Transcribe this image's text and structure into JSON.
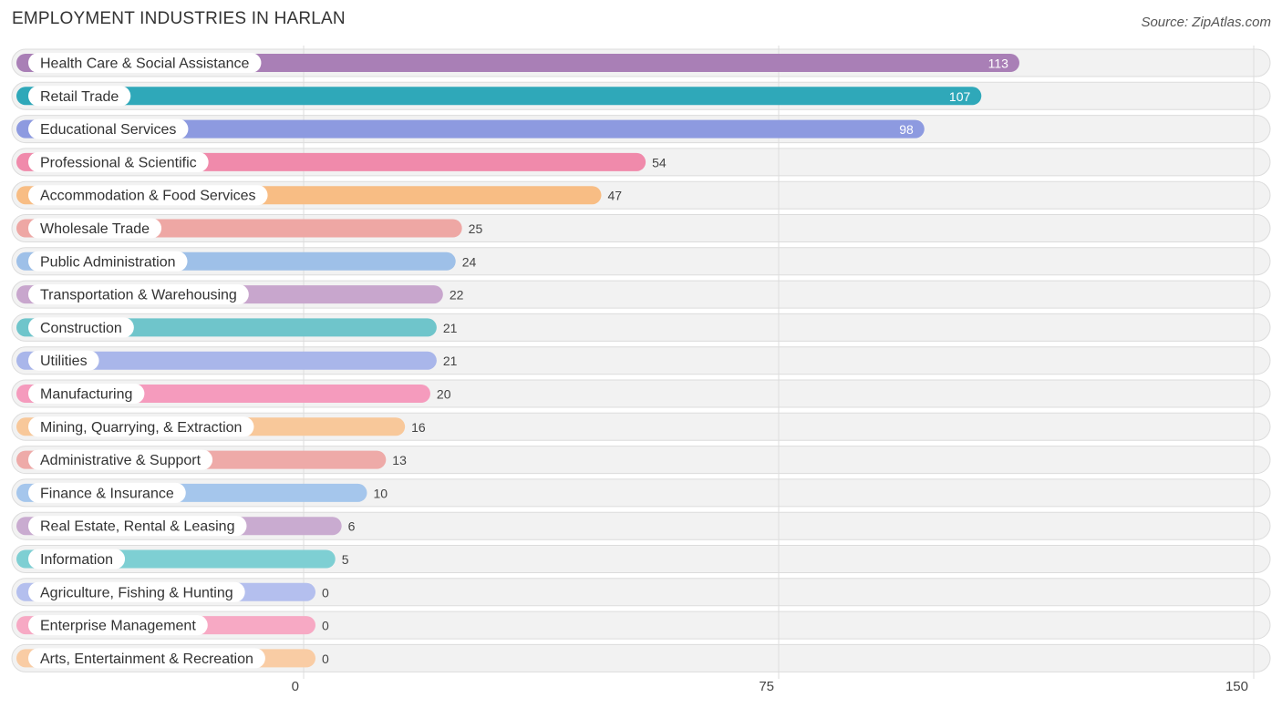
{
  "header": {
    "title": "EMPLOYMENT INDUSTRIES IN HARLAN",
    "source": "Source: ZipAtlas.com"
  },
  "chart_data": {
    "type": "bar",
    "orientation": "horizontal",
    "title": "EMPLOYMENT INDUSTRIES IN HARLAN",
    "xlabel": "",
    "ylabel": "",
    "xlim": [
      0,
      150
    ],
    "xticks": [
      0,
      75,
      150
    ],
    "grid": true,
    "categories": [
      "Health Care & Social Assistance",
      "Retail Trade",
      "Educational Services",
      "Professional & Scientific",
      "Accommodation & Food Services",
      "Wholesale Trade",
      "Public Administration",
      "Transportation & Warehousing",
      "Construction",
      "Utilities",
      "Manufacturing",
      "Mining, Quarrying, & Extraction",
      "Administrative & Support",
      "Finance & Insurance",
      "Real Estate, Rental & Leasing",
      "Information",
      "Agriculture, Fishing & Hunting",
      "Enterprise Management",
      "Arts, Entertainment & Recreation"
    ],
    "values": [
      113,
      107,
      98,
      54,
      47,
      25,
      24,
      22,
      21,
      21,
      20,
      16,
      13,
      10,
      6,
      5,
      0,
      0,
      0
    ],
    "colors": [
      "#a97fb6",
      "#2fa8b9",
      "#8d9ae0",
      "#f08aab",
      "#f8bd84",
      "#eea7a4",
      "#9ec0e8",
      "#c8a6cd",
      "#6fc5cb",
      "#a9b6ea",
      "#f59bbd",
      "#f8c89a",
      "#eeaaa8",
      "#a5c6ec",
      "#c9abd0",
      "#7ecfd3",
      "#b4bfee",
      "#f7a9c4",
      "#f9cca4"
    ]
  }
}
